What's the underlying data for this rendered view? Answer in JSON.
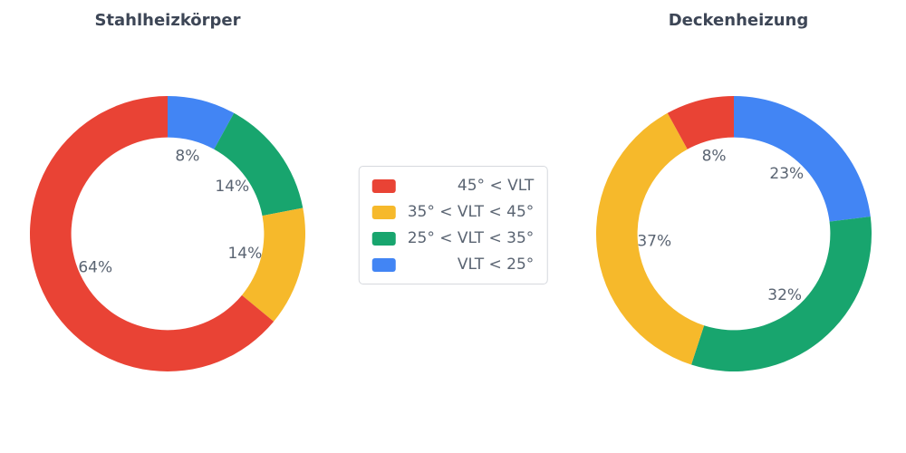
{
  "page": {
    "background_color": "#ffffff",
    "title_color": "#3d4656",
    "label_color": "#5a6472"
  },
  "chart_data": [
    {
      "type": "pie",
      "subtype": "donut",
      "title": "Stahlheizkörper",
      "categories": [
        "45° < VLT",
        "35° < VLT < 45°",
        "25° < VLT < 35°",
        "VLT < 25°"
      ],
      "values": [
        64,
        14,
        14,
        8
      ],
      "unit": "%",
      "data_labels": [
        "64%",
        "14%",
        "14%",
        "8%"
      ],
      "colors": [
        "#E94335",
        "#F6B92B",
        "#18A56E",
        "#4285F4"
      ],
      "hole_ratio": 0.7,
      "start_angle": "top",
      "direction": "clockwise",
      "slice_draw_order": "reversed"
    },
    {
      "type": "pie",
      "subtype": "donut",
      "title": "Deckenheizung",
      "categories": [
        "45° < VLT",
        "35° < VLT < 45°",
        "25° < VLT < 35°",
        "VLT < 25°"
      ],
      "values": [
        8,
        37,
        32,
        23
      ],
      "unit": "%",
      "data_labels": [
        "8%",
        "37%",
        "32%",
        "23%"
      ],
      "colors": [
        "#E94335",
        "#F6B92B",
        "#18A56E",
        "#4285F4"
      ],
      "hole_ratio": 0.7,
      "start_angle": "top",
      "direction": "clockwise",
      "slice_draw_order": "reversed"
    }
  ],
  "legend": {
    "position": "center",
    "items": [
      {
        "label": "45° < VLT",
        "color": "#E94335"
      },
      {
        "label": "35° < VLT < 45°",
        "color": "#F6B92B"
      },
      {
        "label": "25° < VLT < 35°",
        "color": "#18A56E"
      },
      {
        "label": "VLT < 25°",
        "color": "#4285F4"
      }
    ]
  }
}
